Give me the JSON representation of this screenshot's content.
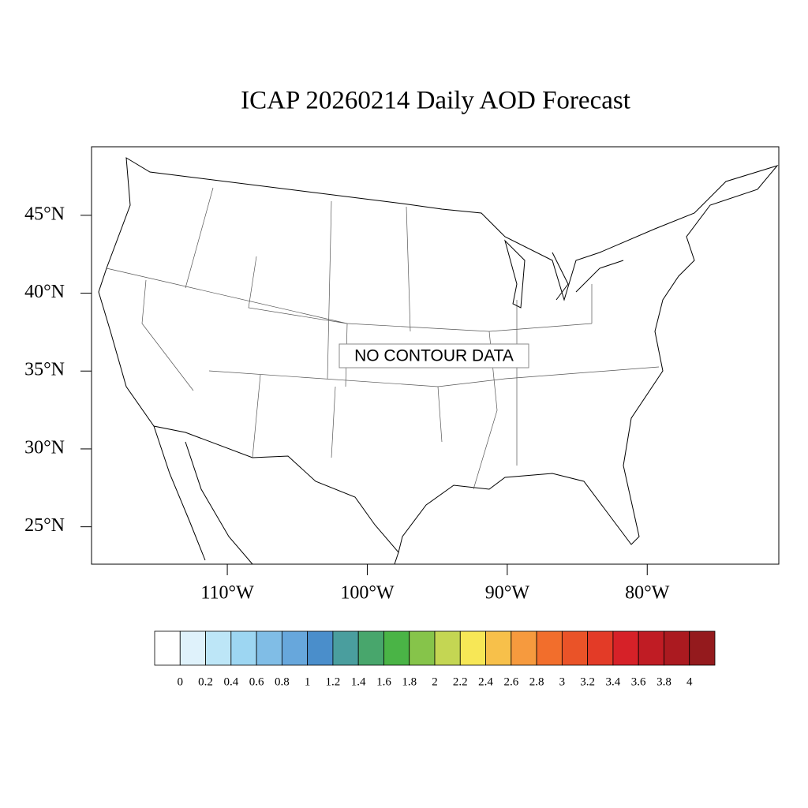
{
  "header": {
    "title": "ICAP 20260214 Daily AOD Forecast"
  },
  "map": {
    "xlim": [
      -119.7,
      -70.6
    ],
    "ylim": [
      22.6,
      49.4
    ],
    "xticks": [
      {
        "value": -110,
        "label": "110°W"
      },
      {
        "value": -100,
        "label": "100°W"
      },
      {
        "value": -90,
        "label": "90°W"
      },
      {
        "value": -80,
        "label": "80°W"
      }
    ],
    "yticks": [
      {
        "value": 25,
        "label": "25°N"
      },
      {
        "value": 30,
        "label": "30°N"
      },
      {
        "value": 35,
        "label": "35°N"
      },
      {
        "value": 40,
        "label": "40°N"
      },
      {
        "value": 45,
        "label": "45°N"
      }
    ],
    "message": "NO CONTOUR DATA"
  },
  "colorbar": {
    "labels": [
      0,
      0.2,
      0.4,
      0.6,
      0.8,
      1,
      1.2,
      1.4,
      1.6,
      1.8,
      2,
      2.2,
      2.4,
      2.6,
      2.8,
      3,
      3.2,
      3.4,
      3.6,
      3.8,
      4
    ],
    "colors": [
      "#ffffff",
      "#dff2fb",
      "#bde6f7",
      "#9dd6f2",
      "#80bde6",
      "#67a7dc",
      "#4a8ecb",
      "#4a9e9e",
      "#48a66c",
      "#4ab446",
      "#86c44a",
      "#c4d653",
      "#f7e756",
      "#f7c04a",
      "#f69a3e",
      "#f26e2c",
      "#ea5328",
      "#e33b27",
      "#d62128",
      "#c01c24",
      "#ab1a20",
      "#941a1d"
    ]
  }
}
